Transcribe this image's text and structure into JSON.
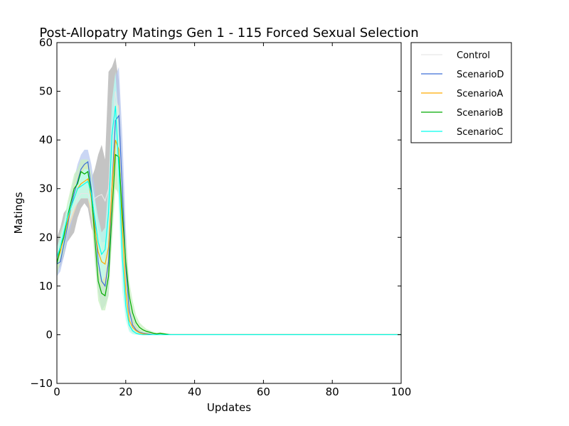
{
  "chart_data": {
    "type": "line",
    "title": "Post-Allopatry Matings Gen 1 - 115 Forced Sexual Selection",
    "xlabel": "Updates",
    "ylabel": "Matings",
    "xlim": [
      0,
      100
    ],
    "ylim": [
      -10,
      60
    ],
    "xticks": [
      0,
      20,
      40,
      60,
      80,
      100
    ],
    "yticks": [
      -10,
      0,
      10,
      20,
      30,
      40,
      50,
      60
    ],
    "grid": false,
    "legend_position": "outside-top-right",
    "series": [
      {
        "name": "Control",
        "color": "#e6e6e6",
        "band_color": "#b0b0b0",
        "x": [
          0,
          1,
          2,
          3,
          4,
          5,
          6,
          7,
          8,
          9,
          10,
          11,
          12,
          13,
          14,
          15,
          16,
          17,
          18,
          19,
          20,
          21,
          22,
          23,
          24,
          25,
          26,
          27,
          28,
          29,
          30,
          35,
          40,
          50,
          60,
          70,
          80,
          90,
          100
        ],
        "y": [
          17,
          18,
          20,
          23,
          24,
          26,
          28,
          29,
          29,
          29,
          27,
          28,
          28.5,
          28.8,
          27.5,
          30,
          40,
          50,
          45,
          25,
          10,
          4,
          2,
          1,
          0.5,
          0.3,
          0.2,
          0.1,
          0.1,
          0,
          0,
          0,
          0,
          0,
          0,
          0,
          0,
          0,
          0
        ],
        "lower": [
          13,
          14,
          16,
          19,
          20,
          21,
          24,
          26,
          27,
          26,
          22,
          20,
          20,
          18,
          15,
          20,
          30,
          42,
          35,
          15,
          5,
          1,
          0.5,
          0.2,
          0,
          0,
          0,
          0,
          0,
          0,
          0,
          0,
          0,
          0,
          0,
          0,
          0,
          0,
          0
        ],
        "upper": [
          20,
          22,
          25,
          26,
          27,
          28,
          30,
          31,
          31,
          32,
          32,
          34,
          37,
          39,
          36,
          54,
          55,
          57,
          52,
          33,
          16,
          7,
          3.5,
          2,
          1,
          0.6,
          0.4,
          0.2,
          0.2,
          0.1,
          0.1,
          0.1,
          0.1,
          0.1,
          0.1,
          0.1,
          0.1,
          0.1,
          0.1
        ]
      },
      {
        "name": "ScenarioD",
        "color": "#3f6fd6",
        "band_color": "#b8c8f0",
        "x": [
          0,
          1,
          2,
          3,
          4,
          5,
          6,
          7,
          8,
          9,
          10,
          11,
          12,
          13,
          14,
          15,
          16,
          17,
          18,
          19,
          20,
          21,
          22,
          23,
          24,
          25,
          26,
          27,
          28,
          29,
          30,
          35,
          40,
          50,
          60,
          70,
          80,
          90,
          100
        ],
        "y": [
          14.5,
          15,
          18.5,
          22,
          26,
          29,
          31.5,
          34,
          35,
          35.5,
          30,
          23,
          15,
          11,
          10,
          15,
          30,
          44,
          45,
          30,
          14,
          5,
          2,
          1,
          0.5,
          0.3,
          0.2,
          0.1,
          0,
          0,
          0,
          0,
          0,
          0,
          0,
          0,
          0,
          0,
          0
        ],
        "lower": [
          12,
          13,
          16,
          19,
          22,
          25,
          27,
          30,
          31,
          30,
          24,
          16,
          9,
          5,
          6,
          8,
          20,
          32,
          30,
          18,
          7,
          2,
          0.5,
          0.2,
          0,
          0,
          0,
          0,
          0,
          0,
          0,
          0,
          0,
          0,
          0,
          0,
          0,
          0,
          0
        ],
        "upper": [
          17,
          18,
          21,
          25,
          29,
          32,
          35,
          37,
          38,
          38,
          35,
          30,
          22,
          17,
          14,
          22,
          40,
          53,
          55,
          41,
          22,
          9,
          4,
          2,
          1,
          0.6,
          0.4,
          0.2,
          0.1,
          0.1,
          0.1,
          0.1,
          0.1,
          0.1,
          0.1,
          0.1,
          0.1,
          0.1,
          0.1
        ]
      },
      {
        "name": "ScenarioA",
        "color": "#ffaa00",
        "band_color": "#ffe4a8",
        "x": [
          0,
          1,
          2,
          3,
          4,
          5,
          6,
          7,
          8,
          9,
          10,
          11,
          12,
          13,
          14,
          15,
          16,
          17,
          18,
          19,
          20,
          21,
          22,
          23,
          24,
          25,
          26,
          27,
          28,
          29,
          30,
          35,
          40,
          50,
          60,
          70,
          80,
          90,
          100
        ],
        "y": [
          15,
          17,
          20,
          23,
          26,
          28,
          30,
          31,
          31.5,
          32,
          28,
          22,
          17,
          15,
          14.5,
          18,
          30,
          40,
          38,
          22,
          9,
          3,
          1.5,
          0.8,
          0.4,
          0.2,
          0.1,
          0,
          0,
          0,
          0,
          0,
          0,
          0,
          0,
          0,
          0,
          0,
          0
        ],
        "lower": [
          13,
          15,
          18,
          21,
          23,
          25,
          27,
          28,
          28,
          28,
          24,
          17,
          12,
          10,
          10,
          12,
          22,
          31,
          28,
          14,
          4,
          1,
          0.3,
          0,
          0,
          0,
          0,
          0,
          0,
          0,
          0,
          0,
          0,
          0,
          0,
          0,
          0,
          0,
          0
        ],
        "upper": [
          17,
          19,
          22,
          25,
          28,
          31,
          33,
          34,
          35,
          35,
          32,
          27,
          22,
          19,
          19,
          24,
          38,
          48,
          47,
          30,
          14,
          6,
          3,
          1.6,
          0.8,
          0.4,
          0.2,
          0.1,
          0.1,
          0.1,
          0.1,
          0.1,
          0.1,
          0.1,
          0.1,
          0.1,
          0.1,
          0.1,
          0.1
        ]
      },
      {
        "name": "ScenarioB",
        "color": "#00aa00",
        "band_color": "#c8f0c0",
        "x": [
          0,
          1,
          2,
          3,
          4,
          5,
          6,
          7,
          8,
          9,
          10,
          11,
          12,
          13,
          14,
          15,
          16,
          17,
          18,
          19,
          20,
          21,
          22,
          23,
          24,
          25,
          26,
          27,
          28,
          29,
          30,
          31,
          32,
          33,
          34,
          35,
          40,
          50,
          60,
          70,
          80,
          90,
          100
        ],
        "y": [
          14.5,
          18,
          20,
          24,
          27,
          30,
          31,
          33.5,
          33,
          33.5,
          29,
          20,
          11,
          8.5,
          8,
          12,
          25,
          37,
          36.5,
          25,
          15,
          8,
          4.5,
          2.5,
          1.5,
          1,
          0.7,
          0.5,
          0.3,
          0.2,
          0.3,
          0.2,
          0.1,
          0,
          0,
          0,
          0,
          0,
          0,
          0,
          0,
          0,
          0
        ],
        "lower": [
          12,
          15,
          17,
          21,
          24,
          27,
          28,
          30,
          30,
          30,
          25,
          15,
          7,
          5,
          5,
          8,
          19,
          30,
          29,
          18,
          10,
          5,
          2.5,
          1.2,
          0.6,
          0.3,
          0.2,
          0.1,
          0,
          0,
          0,
          0,
          0,
          0,
          0,
          0,
          0,
          0,
          0,
          0,
          0,
          0,
          0
        ],
        "upper": [
          17,
          21,
          23,
          27,
          30,
          33,
          34,
          36,
          36,
          36,
          33,
          25,
          15,
          12,
          11,
          16,
          31,
          44,
          44,
          32,
          20,
          11,
          7,
          4,
          2.5,
          1.8,
          1.2,
          0.9,
          0.6,
          0.4,
          0.5,
          0.4,
          0.2,
          0.1,
          0.1,
          0.1,
          0.1,
          0.1,
          0.1,
          0.1,
          0.1,
          0.1,
          0.1
        ]
      },
      {
        "name": "ScenarioC",
        "color": "#00ffee",
        "band_color": "#b8fff4",
        "x": [
          0,
          1,
          2,
          3,
          4,
          5,
          6,
          7,
          8,
          9,
          10,
          11,
          12,
          13,
          14,
          15,
          16,
          17,
          18,
          19,
          20,
          21,
          22,
          23,
          24,
          25,
          26,
          27,
          28,
          29,
          30,
          35,
          40,
          50,
          60,
          70,
          80,
          90,
          100
        ],
        "y": [
          16,
          18,
          21,
          24,
          26,
          28,
          30,
          30.5,
          31,
          31.5,
          29,
          24,
          19,
          16.5,
          17.5,
          25,
          41,
          47,
          34,
          16,
          6,
          2,
          0.8,
          0.3,
          0.1,
          0,
          0,
          0,
          0,
          0,
          0,
          0,
          0,
          0,
          0,
          0,
          0,
          0,
          0
        ],
        "lower": [
          14,
          16,
          19,
          22,
          24,
          26,
          27,
          28,
          28,
          28,
          26,
          20,
          14,
          11,
          12,
          18,
          33,
          40,
          25,
          9,
          3,
          0.6,
          0.1,
          0,
          0,
          0,
          0,
          0,
          0,
          0,
          0,
          0,
          0,
          0,
          0,
          0,
          0,
          0,
          0
        ],
        "upper": [
          18,
          20,
          23,
          26,
          28,
          30,
          32,
          33,
          34,
          34,
          32,
          28,
          24,
          21,
          22,
          31,
          48,
          54,
          43,
          24,
          10,
          4,
          1.8,
          0.8,
          0.3,
          0.1,
          0.1,
          0.1,
          0.1,
          0.1,
          0.1,
          0.1,
          0.1,
          0.1,
          0.1,
          0.1,
          0.1,
          0.1,
          0.1
        ]
      }
    ]
  }
}
